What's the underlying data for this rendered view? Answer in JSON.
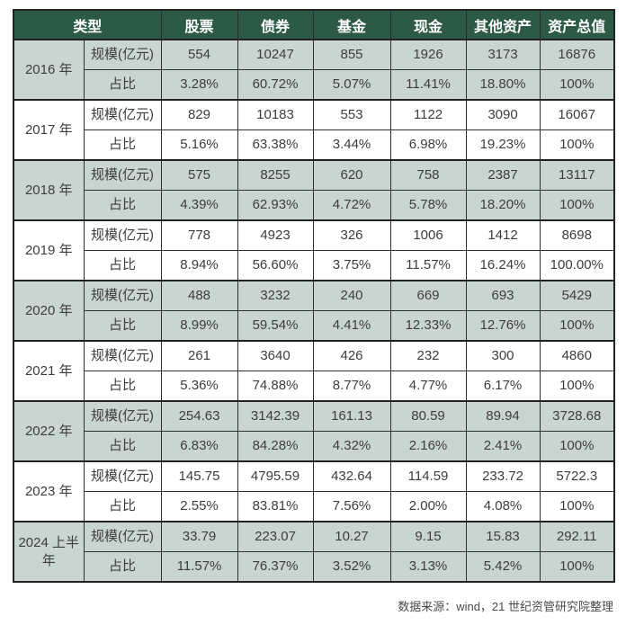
{
  "chart_data": {
    "type": "table",
    "title": "",
    "columns": [
      "类型",
      "股票",
      "债券",
      "基金",
      "现金",
      "其他资产",
      "资产总值"
    ],
    "row_labels": {
      "scale": "规模(亿元)",
      "share": "占比"
    },
    "groups": [
      {
        "year": "2016 年",
        "scale": [
          "554",
          "10247",
          "855",
          "1926",
          "3173",
          "16876"
        ],
        "share": [
          "3.28%",
          "60.72%",
          "5.07%",
          "11.41%",
          "18.80%",
          "100%"
        ]
      },
      {
        "year": "2017 年",
        "scale": [
          "829",
          "10183",
          "553",
          "1122",
          "3090",
          "16067"
        ],
        "share": [
          "5.16%",
          "63.38%",
          "3.44%",
          "6.98%",
          "19.23%",
          "100%"
        ]
      },
      {
        "year": "2018 年",
        "scale": [
          "575",
          "8255",
          "620",
          "758",
          "2387",
          "13117"
        ],
        "share": [
          "4.39%",
          "62.93%",
          "4.72%",
          "5.78%",
          "18.20%",
          "100%"
        ]
      },
      {
        "year": "2019 年",
        "scale": [
          "778",
          "4923",
          "326",
          "1006",
          "1412",
          "8698"
        ],
        "share": [
          "8.94%",
          "56.60%",
          "3.75%",
          "11.57%",
          "16.24%",
          "100.00%"
        ]
      },
      {
        "year": "2020 年",
        "scale": [
          "488",
          "3232",
          "240",
          "669",
          "693",
          "5429"
        ],
        "share": [
          "8.99%",
          "59.54%",
          "4.41%",
          "12.33%",
          "12.76%",
          "100%"
        ]
      },
      {
        "year": "2021 年",
        "scale": [
          "261",
          "3640",
          "426",
          "232",
          "300",
          "4860"
        ],
        "share": [
          "5.36%",
          "74.88%",
          "8.77%",
          "4.77%",
          "6.17%",
          "100%"
        ]
      },
      {
        "year": "2022 年",
        "scale": [
          "254.63",
          "3142.39",
          "161.13",
          "80.59",
          "89.94",
          "3728.68"
        ],
        "share": [
          "6.83%",
          "84.28%",
          "4.32%",
          "2.16%",
          "2.41%",
          "100%"
        ]
      },
      {
        "year": "2023 年",
        "scale": [
          "145.75",
          "4795.59",
          "432.64",
          "114.59",
          "233.72",
          "5722.3"
        ],
        "share": [
          "2.55%",
          "83.81%",
          "7.56%",
          "2.00%",
          "4.08%",
          "100%"
        ]
      },
      {
        "year": "2024 上半年",
        "scale": [
          "33.79",
          "223.07",
          "10.27",
          "9.15",
          "15.83",
          "292.11"
        ],
        "share": [
          "11.57%",
          "76.37%",
          "3.52%",
          "3.13%",
          "5.42%",
          "100%"
        ]
      }
    ],
    "source_note": "数据来源：wind，21 世纪资管研究院整理",
    "layout": {
      "shaded_group_indexes": [
        0,
        2,
        4,
        6,
        8
      ],
      "legend": "none",
      "grid": "all-borders"
    }
  },
  "colors": {
    "header_bg": "#2d5947",
    "header_text": "#ffffff",
    "shaded_row_bg": "#c9d5d1",
    "body_text": "#3d3d3d",
    "border": "#222222",
    "source_text": "#4a4a4a",
    "page_bg": "#ffffff"
  }
}
